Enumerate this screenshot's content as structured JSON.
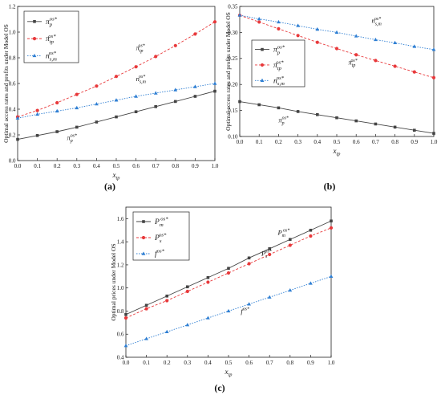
{
  "chart_data": [
    {
      "panel": "(a)",
      "type": "line",
      "xlabel": "x_tp",
      "ylabel": "Optimal access rates and profits under Model OS",
      "x": [
        0.0,
        0.1,
        0.2,
        0.3,
        0.4,
        0.5,
        0.6,
        0.7,
        0.8,
        0.9,
        1.0
      ],
      "xlim": [
        0.0,
        1.0
      ],
      "ylim": [
        0.0,
        1.2
      ],
      "xticks": [
        "0.0",
        "0.1",
        "0.2",
        "0.3",
        "0.4",
        "0.5",
        "0.6",
        "0.7",
        "0.8",
        "0.9",
        "1.0"
      ],
      "yticks": [
        "0.0",
        "0.2",
        "0.4",
        "0.6",
        "0.8",
        "1.0",
        "1.2"
      ],
      "legend_position": "top-left",
      "series": [
        {
          "name": "π_p^os*",
          "marker": "square",
          "color": "#444444",
          "dash": "",
          "values": [
            0.165,
            0.195,
            0.225,
            0.26,
            0.3,
            0.34,
            0.38,
            0.42,
            0.46,
            0.5,
            0.54
          ]
        },
        {
          "name": "π_tp^os*",
          "marker": "circle",
          "color": "#e8393b",
          "dash": "3,2",
          "values": [
            0.34,
            0.39,
            0.45,
            0.515,
            0.58,
            0.655,
            0.73,
            0.81,
            0.895,
            0.985,
            1.08
          ]
        },
        {
          "name": "n_s,m^os*",
          "marker": "triangle",
          "color": "#2f7fd3",
          "dash": "1.5,1.5",
          "values": [
            0.33,
            0.36,
            0.385,
            0.41,
            0.44,
            0.47,
            0.5,
            0.525,
            0.55,
            0.575,
            0.6
          ]
        }
      ],
      "annotations": [
        {
          "text": "π_tp^os*",
          "x": 0.6,
          "y": 0.86
        },
        {
          "text": "n_s,m^os*",
          "x": 0.6,
          "y": 0.62
        },
        {
          "text": "π_p^os*",
          "x": 0.25,
          "y": 0.16
        }
      ]
    },
    {
      "panel": "(b)",
      "type": "line",
      "xlabel": "x_tp",
      "ylabel": "Optimal access rates and profits under Model OS",
      "x": [
        0.0,
        0.1,
        0.2,
        0.3,
        0.4,
        0.5,
        0.6,
        0.7,
        0.8,
        0.9,
        1.0
      ],
      "xlim": [
        0.0,
        1.0
      ],
      "ylim": [
        0.1,
        0.35
      ],
      "xticks": [
        "0.0",
        "0.1",
        "0.2",
        "0.3",
        "0.4",
        "0.5",
        "0.6",
        "0.7",
        "0.8",
        "0.9",
        "1.0"
      ],
      "yticks": [
        "0.10",
        "0.15",
        "0.20",
        "0.25",
        "0.30",
        "0.35"
      ],
      "legend_position": "middle-left",
      "series": [
        {
          "name": "π_p^os*",
          "marker": "square",
          "color": "#444444",
          "dash": "",
          "values": [
            0.167,
            0.161,
            0.155,
            0.148,
            0.142,
            0.136,
            0.13,
            0.124,
            0.118,
            0.112,
            0.106
          ]
        },
        {
          "name": "π_tp^os*",
          "marker": "circle",
          "color": "#e8393b",
          "dash": "3,2",
          "values": [
            0.333,
            0.32,
            0.307,
            0.294,
            0.281,
            0.269,
            0.257,
            0.246,
            0.235,
            0.224,
            0.213
          ]
        },
        {
          "name": "n_s,m^os*",
          "marker": "triangle",
          "color": "#2f7fd3",
          "dash": "1.5,1.5",
          "values": [
            0.333,
            0.326,
            0.32,
            0.313,
            0.306,
            0.3,
            0.293,
            0.286,
            0.28,
            0.273,
            0.267
          ]
        }
      ],
      "annotations": [
        {
          "text": "n_s,m^os*",
          "x": 0.68,
          "y": 0.318
        },
        {
          "text": "π_tp^os*",
          "x": 0.56,
          "y": 0.238
        },
        {
          "text": "π_p^os*",
          "x": 0.2,
          "y": 0.127
        }
      ]
    },
    {
      "panel": "(c)",
      "type": "line",
      "xlabel": "x_tp",
      "ylabel": "Optimal prices under Model OS",
      "x": [
        0.0,
        0.1,
        0.2,
        0.3,
        0.4,
        0.5,
        0.6,
        0.7,
        0.8,
        0.9,
        1.0
      ],
      "xlim": [
        0.0,
        1.0
      ],
      "ylim": [
        0.4,
        1.7
      ],
      "xticks": [
        "0.0",
        "0.1",
        "0.2",
        "0.3",
        "0.4",
        "0.5",
        "0.6",
        "0.7",
        "0.8",
        "0.9",
        "1.0"
      ],
      "yticks": [
        "0.4",
        "0.6",
        "0.8",
        "1.0",
        "1.2",
        "1.4",
        "1.6"
      ],
      "legend_position": "top-left",
      "series": [
        {
          "name": "P_m^os*",
          "marker": "square",
          "color": "#444444",
          "dash": "",
          "values": [
            0.77,
            0.85,
            0.93,
            1.01,
            1.09,
            1.17,
            1.26,
            1.34,
            1.42,
            1.5,
            1.58
          ]
        },
        {
          "name": "P_s^os*",
          "marker": "circle",
          "color": "#e8393b",
          "dash": "3,2",
          "values": [
            0.74,
            0.82,
            0.89,
            0.97,
            1.05,
            1.13,
            1.21,
            1.29,
            1.37,
            1.45,
            1.52
          ]
        },
        {
          "name": "f^os*",
          "marker": "triangle",
          "color": "#2f7fd3",
          "dash": "1.5,1.5",
          "values": [
            0.5,
            0.56,
            0.62,
            0.68,
            0.74,
            0.8,
            0.86,
            0.92,
            0.98,
            1.04,
            1.1
          ]
        }
      ],
      "annotations": [
        {
          "text": "P_m^os*",
          "x": 0.74,
          "y": 1.46
        },
        {
          "text": "P_s^os*",
          "x": 0.66,
          "y": 1.28
        },
        {
          "text": "f^os*",
          "x": 0.56,
          "y": 0.78
        }
      ]
    }
  ]
}
